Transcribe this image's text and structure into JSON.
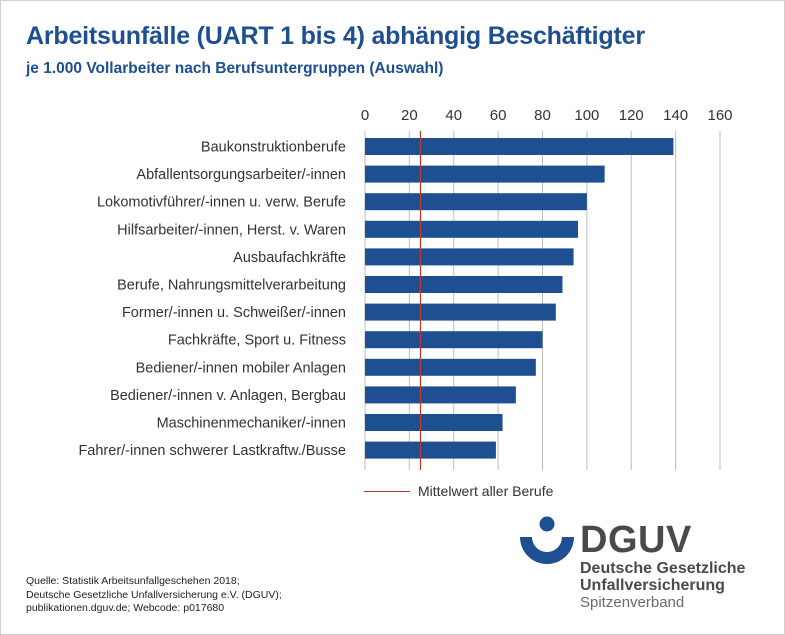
{
  "header": {
    "title": "Arbeitsunfälle (UART 1 bis 4) abhängig Beschäftigter",
    "subtitle": "je 1.000 Vollarbeiter nach Berufsuntergruppen (Auswahl)"
  },
  "chart_data": {
    "type": "bar",
    "orientation": "horizontal",
    "categories": [
      "Baukonstruktionberufe",
      "Abfallentsorgungsarbeiter/-innen",
      "Lokomotivführer/-innen u. verw. Berufe",
      "Hilfsarbeiter/-innen, Herst. v. Waren",
      "Ausbaufachkräfte",
      "Berufe, Nahrungsmittelverarbeitung",
      "Former/-innen u. Schweißer/-innen",
      "Fachkräfte, Sport u. Fitness",
      "Bediener/-innen mobiler Anlagen",
      "Bediener/-innen v. Anlagen, Bergbau",
      "Maschinenmechaniker/-innen",
      "Fahrer/-innen schwerer Lastkraftw./Busse"
    ],
    "values": [
      139,
      108,
      100,
      96,
      94,
      89,
      86,
      80,
      77,
      68,
      62,
      59
    ],
    "xlim": [
      0,
      160
    ],
    "xticks": [
      0,
      20,
      40,
      60,
      80,
      100,
      120,
      140,
      160
    ],
    "reference_line": {
      "value": 25,
      "label": "Mittelwert aller Berufe"
    },
    "bar_color": "#1d4f91",
    "reference_color": "#c0392b",
    "grid": true,
    "legend_position": "bottom"
  },
  "source": {
    "lines": [
      "Quelle: Statistik Arbeitsunfallgeschehen 2018;",
      "Deutsche Gesetzliche Unfallversicherung e.V. (DGUV);",
      "publikationen.dguv.de; Webcode: p017680"
    ]
  },
  "logo": {
    "abbr": "DGUV",
    "line1": "Deutsche Gesetzliche",
    "line2": "Unfallversicherung",
    "line3": "Spitzenverband",
    "accent": "#1d4f91"
  }
}
